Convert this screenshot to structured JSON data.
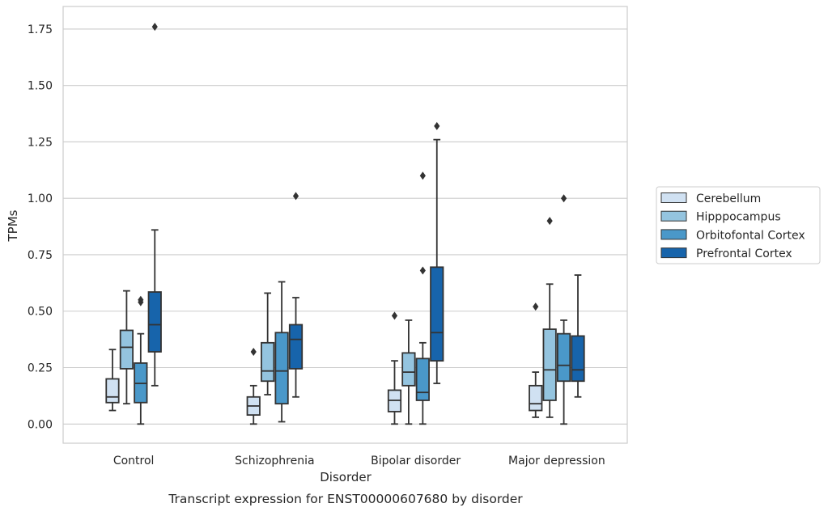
{
  "chart_data": {
    "type": "box",
    "title": "Transcript expression for ENST00000607680 by disorder",
    "xlabel": "Disorder",
    "ylabel": "TPMs",
    "ylim": [
      -0.085,
      1.85
    ],
    "yticks": [
      "0.00",
      "0.25",
      "0.50",
      "0.75",
      "1.00",
      "1.25",
      "1.50",
      "1.75"
    ],
    "grid": true,
    "legend_position": "right, outside plot",
    "categories": [
      "Control",
      "Schizophrenia",
      "Bipolar disorder",
      "Major depression"
    ],
    "series": [
      {
        "name": "Cerebellum",
        "color": "#d0e1f2",
        "boxes": [
          {
            "whisker_low": 0.06,
            "q1": 0.095,
            "median": 0.12,
            "q3": 0.2,
            "whisker_high": 0.33,
            "outliers": []
          },
          {
            "whisker_low": 0.0,
            "q1": 0.04,
            "median": 0.08,
            "q3": 0.12,
            "whisker_high": 0.17,
            "outliers": [
              0.32
            ]
          },
          {
            "whisker_low": 0.0,
            "q1": 0.055,
            "median": 0.105,
            "q3": 0.15,
            "whisker_high": 0.28,
            "outliers": [
              0.48
            ]
          },
          {
            "whisker_low": 0.03,
            "q1": 0.06,
            "median": 0.09,
            "q3": 0.17,
            "whisker_high": 0.23,
            "outliers": [
              0.52
            ]
          }
        ]
      },
      {
        "name": "Hipppocampus",
        "color": "#94c4df",
        "boxes": [
          {
            "whisker_low": 0.09,
            "q1": 0.245,
            "median": 0.34,
            "q3": 0.415,
            "whisker_high": 0.59,
            "outliers": []
          },
          {
            "whisker_low": 0.13,
            "q1": 0.19,
            "median": 0.235,
            "q3": 0.36,
            "whisker_high": 0.58,
            "outliers": []
          },
          {
            "whisker_low": 0.0,
            "q1": 0.17,
            "median": 0.23,
            "q3": 0.315,
            "whisker_high": 0.46,
            "outliers": []
          },
          {
            "whisker_low": 0.03,
            "q1": 0.105,
            "median": 0.24,
            "q3": 0.42,
            "whisker_high": 0.62,
            "outliers": [
              0.9
            ]
          }
        ]
      },
      {
        "name": "Orbitofontal Cortex",
        "color": "#4a98c9",
        "boxes": [
          {
            "whisker_low": 0.0,
            "q1": 0.095,
            "median": 0.18,
            "q3": 0.27,
            "whisker_high": 0.4,
            "outliers": [
              0.54,
              0.55
            ]
          },
          {
            "whisker_low": 0.01,
            "q1": 0.09,
            "median": 0.235,
            "q3": 0.405,
            "whisker_high": 0.63,
            "outliers": []
          },
          {
            "whisker_low": 0.0,
            "q1": 0.105,
            "median": 0.14,
            "q3": 0.29,
            "whisker_high": 0.36,
            "outliers": [
              0.68,
              1.1
            ]
          },
          {
            "whisker_low": 0.0,
            "q1": 0.19,
            "median": 0.26,
            "q3": 0.4,
            "whisker_high": 0.46,
            "outliers": [
              1.0
            ]
          }
        ]
      },
      {
        "name": "Prefrontal Cortex",
        "color": "#1764ab",
        "boxes": [
          {
            "whisker_low": 0.17,
            "q1": 0.32,
            "median": 0.44,
            "q3": 0.585,
            "whisker_high": 0.86,
            "outliers": [
              1.76
            ]
          },
          {
            "whisker_low": 0.12,
            "q1": 0.245,
            "median": 0.375,
            "q3": 0.44,
            "whisker_high": 0.56,
            "outliers": [
              1.01
            ]
          },
          {
            "whisker_low": 0.18,
            "q1": 0.28,
            "median": 0.405,
            "q3": 0.695,
            "whisker_high": 1.26,
            "outliers": [
              1.32
            ]
          },
          {
            "whisker_low": 0.12,
            "q1": 0.19,
            "median": 0.24,
            "q3": 0.39,
            "whisker_high": 0.66,
            "outliers": []
          }
        ]
      }
    ]
  }
}
